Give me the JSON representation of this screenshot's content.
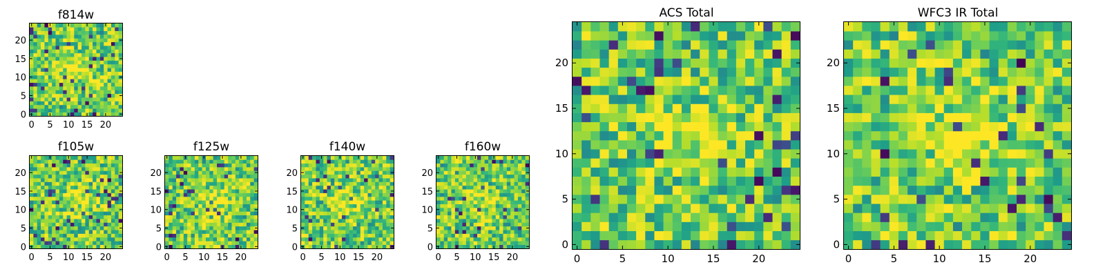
{
  "chart_data": [
    {
      "id": "f814w",
      "type": "heatmap",
      "title": "f814w",
      "colormap": "viridis",
      "grid_size": 25,
      "xlim": [
        -0.5,
        24.5
      ],
      "ylim": [
        -0.5,
        24.5
      ],
      "xticks": [
        0,
        5,
        10,
        15,
        20
      ],
      "yticks": [
        0,
        5,
        10,
        15,
        20
      ],
      "seed": 11
    },
    {
      "id": "f105w",
      "type": "heatmap",
      "title": "f105w",
      "colormap": "viridis",
      "grid_size": 25,
      "xlim": [
        -0.5,
        24.5
      ],
      "ylim": [
        -0.5,
        24.5
      ],
      "xticks": [
        0,
        5,
        10,
        15,
        20
      ],
      "yticks": [
        0,
        5,
        10,
        15,
        20
      ],
      "seed": 23
    },
    {
      "id": "f125w",
      "type": "heatmap",
      "title": "f125w",
      "colormap": "viridis",
      "grid_size": 25,
      "xlim": [
        -0.5,
        24.5
      ],
      "ylim": [
        -0.5,
        24.5
      ],
      "xticks": [
        0,
        5,
        10,
        15,
        20
      ],
      "yticks": [
        0,
        5,
        10,
        15,
        20
      ],
      "seed": 37
    },
    {
      "id": "f140w",
      "type": "heatmap",
      "title": "f140w",
      "colormap": "viridis",
      "grid_size": 25,
      "xlim": [
        -0.5,
        24.5
      ],
      "ylim": [
        -0.5,
        24.5
      ],
      "xticks": [
        0,
        5,
        10,
        15,
        20
      ],
      "yticks": [
        0,
        5,
        10,
        15,
        20
      ],
      "seed": 41
    },
    {
      "id": "f160w",
      "type": "heatmap",
      "title": "f160w",
      "colormap": "viridis",
      "grid_size": 25,
      "xlim": [
        -0.5,
        24.5
      ],
      "ylim": [
        -0.5,
        24.5
      ],
      "xticks": [
        0,
        5,
        10,
        15,
        20
      ],
      "yticks": [
        0,
        5,
        10,
        15,
        20
      ],
      "seed": 53
    },
    {
      "id": "acs-total",
      "type": "heatmap",
      "title": "ACS Total",
      "colormap": "viridis",
      "grid_size": 25,
      "xlim": [
        -0.5,
        24.5
      ],
      "ylim": [
        -0.5,
        24.5
      ],
      "xticks": [
        0,
        5,
        10,
        15,
        20
      ],
      "yticks": [
        0,
        5,
        10,
        15,
        20
      ],
      "seed": 67
    },
    {
      "id": "wfc3-ir-total",
      "type": "heatmap",
      "title": "WFC3 IR Total",
      "colormap": "viridis",
      "grid_size": 25,
      "xlim": [
        -0.5,
        24.5
      ],
      "ylim": [
        -0.5,
        24.5
      ],
      "xticks": [
        0,
        5,
        10,
        15,
        20
      ],
      "yticks": [
        0,
        5,
        10,
        15,
        20
      ],
      "seed": 79
    }
  ]
}
